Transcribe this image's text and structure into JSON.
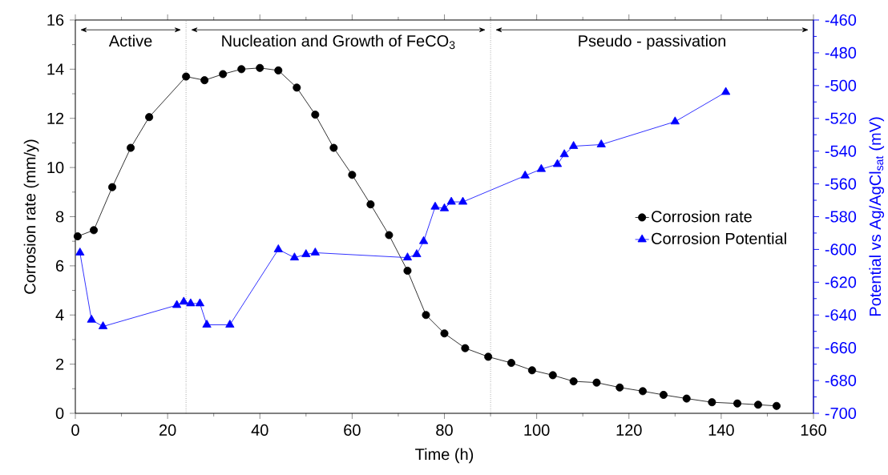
{
  "chart_data": {
    "type": "line",
    "xlabel": "Time (h)",
    "ylabel": "Corrosion rate (mm/y)",
    "y2label": "Potential vs Ag/AgCl$_{sat}$ (mV)",
    "xlim": [
      0,
      160
    ],
    "xticks": [
      0,
      20,
      40,
      60,
      80,
      100,
      120,
      140,
      160
    ],
    "ylim": [
      0,
      16
    ],
    "yticks": [
      0,
      2,
      4,
      6,
      8,
      10,
      12,
      14,
      16
    ],
    "y2lim": [
      -700,
      -460
    ],
    "y2ticks": [
      -700,
      -680,
      -660,
      -640,
      -620,
      -600,
      -580,
      -560,
      -540,
      -520,
      -500,
      -480,
      -460
    ],
    "legend": "right",
    "grid": false,
    "line_style": "solid",
    "series": [
      {
        "name": "Corrosion rate",
        "color": "#000000",
        "marker": "circle",
        "x": [
          0.5,
          4,
          8,
          12,
          16,
          24,
          28,
          32,
          36,
          40,
          44,
          48,
          52,
          56,
          60,
          64,
          68,
          72,
          76,
          80,
          84.5,
          89.5,
          94.5,
          99,
          103.5,
          108,
          113,
          118,
          123,
          127.5,
          132.5,
          138,
          143.5,
          148,
          152
        ],
        "values": [
          7.2,
          7.45,
          9.2,
          10.8,
          12.05,
          13.7,
          13.55,
          13.8,
          14.0,
          14.05,
          13.95,
          13.25,
          12.15,
          10.8,
          9.7,
          8.5,
          7.25,
          5.8,
          4.0,
          3.25,
          2.65,
          2.3,
          2.05,
          1.75,
          1.55,
          1.3,
          1.25,
          1.05,
          0.9,
          0.75,
          0.6,
          0.45,
          0.4,
          0.35,
          0.3
        ]
      },
      {
        "name": "Corrosion Potential",
        "color": "#0000ff",
        "marker": "triangle",
        "axis": "y2",
        "x": [
          1,
          3.5,
          6,
          22,
          23.5,
          25,
          27,
          28.5,
          33.5,
          44,
          47.5,
          50,
          52,
          72,
          74,
          75.5,
          78,
          80,
          81.5,
          84,
          97.5,
          101,
          104.5,
          106,
          108,
          114,
          130,
          141
        ],
        "values": [
          -602,
          -643,
          -647,
          -634,
          -632,
          -633,
          -633,
          -646,
          -646,
          -600,
          -605,
          -603,
          -602,
          -605,
          -603,
          -595,
          -574,
          -575,
          -571,
          -571,
          -555,
          -551,
          -548,
          -542,
          -537,
          -536,
          -522,
          -504
        ]
      }
    ],
    "ref_lines": [
      {
        "axis": "x",
        "value": 24,
        "color": "#000000",
        "line_style": "dotted"
      },
      {
        "axis": "x",
        "value": 90,
        "color": "#000000",
        "line_style": "dotted"
      }
    ],
    "annotations": [
      "Active",
      "Nucleation and Growth of FeCO$_{3}$",
      "Pseudo - passivation"
    ]
  }
}
